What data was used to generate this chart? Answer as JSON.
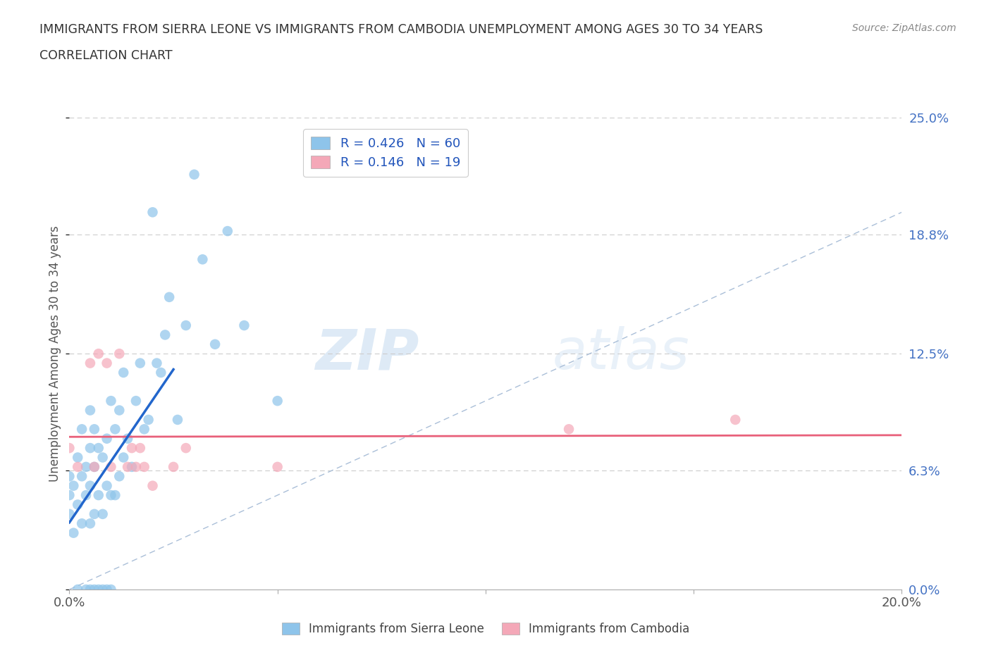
{
  "title_line1": "IMMIGRANTS FROM SIERRA LEONE VS IMMIGRANTS FROM CAMBODIA UNEMPLOYMENT AMONG AGES 30 TO 34 YEARS",
  "title_line2": "CORRELATION CHART",
  "source_text": "Source: ZipAtlas.com",
  "ylabel": "Unemployment Among Ages 30 to 34 years",
  "legend_label1": "Immigrants from Sierra Leone",
  "legend_label2": "Immigrants from Cambodia",
  "R1": 0.426,
  "N1": 60,
  "R2": 0.146,
  "N2": 19,
  "color_sierra": "#8ec4ea",
  "color_cambodia": "#f4a8b8",
  "color_trend_sierra": "#2266cc",
  "color_trend_cambodia": "#e8607a",
  "color_diagonal": "#aabfd8",
  "xlim": [
    0.0,
    0.2
  ],
  "ylim": [
    0.0,
    0.25
  ],
  "yticks": [
    0.0,
    0.063,
    0.125,
    0.188,
    0.25
  ],
  "ytick_labels": [
    "0.0%",
    "6.3%",
    "12.5%",
    "18.8%",
    "25.0%"
  ],
  "xticks": [
    0.0,
    0.05,
    0.1,
    0.15,
    0.2
  ],
  "xtick_labels_bottom": [
    "0.0%",
    "",
    "",
    "",
    "20.0%"
  ],
  "watermark_zip": "ZIP",
  "watermark_atlas": "atlas",
  "sierra_x": [
    0.0,
    0.0,
    0.0,
    0.001,
    0.001,
    0.002,
    0.002,
    0.002,
    0.003,
    0.003,
    0.003,
    0.004,
    0.004,
    0.004,
    0.005,
    0.005,
    0.005,
    0.005,
    0.005,
    0.006,
    0.006,
    0.006,
    0.006,
    0.007,
    0.007,
    0.007,
    0.008,
    0.008,
    0.008,
    0.009,
    0.009,
    0.009,
    0.01,
    0.01,
    0.01,
    0.011,
    0.011,
    0.012,
    0.012,
    0.013,
    0.013,
    0.014,
    0.015,
    0.016,
    0.017,
    0.018,
    0.019,
    0.02,
    0.021,
    0.022,
    0.023,
    0.024,
    0.026,
    0.028,
    0.03,
    0.032,
    0.035,
    0.038,
    0.042,
    0.05
  ],
  "sierra_y": [
    0.04,
    0.05,
    0.06,
    0.03,
    0.055,
    0.0,
    0.045,
    0.07,
    0.035,
    0.06,
    0.085,
    0.0,
    0.05,
    0.065,
    0.0,
    0.035,
    0.055,
    0.075,
    0.095,
    0.0,
    0.04,
    0.065,
    0.085,
    0.0,
    0.05,
    0.075,
    0.0,
    0.04,
    0.07,
    0.0,
    0.055,
    0.08,
    0.0,
    0.05,
    0.1,
    0.05,
    0.085,
    0.06,
    0.095,
    0.07,
    0.115,
    0.08,
    0.065,
    0.1,
    0.12,
    0.085,
    0.09,
    0.2,
    0.12,
    0.115,
    0.135,
    0.155,
    0.09,
    0.14,
    0.22,
    0.175,
    0.13,
    0.19,
    0.14,
    0.1
  ],
  "cambodia_x": [
    0.0,
    0.002,
    0.005,
    0.006,
    0.007,
    0.009,
    0.01,
    0.012,
    0.014,
    0.015,
    0.016,
    0.017,
    0.018,
    0.02,
    0.025,
    0.028,
    0.05,
    0.12,
    0.16
  ],
  "cambodia_y": [
    0.075,
    0.065,
    0.12,
    0.065,
    0.125,
    0.12,
    0.065,
    0.125,
    0.065,
    0.075,
    0.065,
    0.075,
    0.065,
    0.055,
    0.065,
    0.075,
    0.065,
    0.085,
    0.09
  ],
  "trend_sierra_x0": 0.0,
  "trend_sierra_x1": 0.025,
  "trend_cambodia_x0": 0.0,
  "trend_cambodia_x1": 0.2
}
